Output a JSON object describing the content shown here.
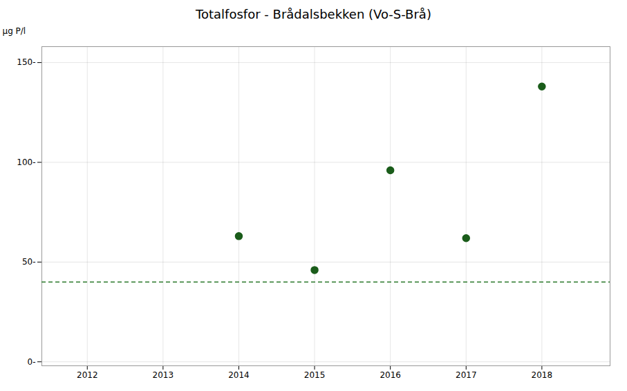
{
  "chart_data": {
    "type": "scatter",
    "title": "Totalfosfor - Brådalsbekken (Vo-S-Brå)",
    "ylabel": "μg P/l",
    "x": [
      2014,
      2015,
      2016,
      2017,
      2018
    ],
    "values": [
      63,
      46,
      96,
      62,
      138
    ],
    "color": "#1a5c1a",
    "marker": "circle",
    "xlim": [
      2011.4,
      2018.9
    ],
    "xticks": [
      2012,
      2013,
      2014,
      2015,
      2016,
      2017,
      2018
    ],
    "ylim": [
      -2,
      158
    ],
    "yticks": [
      {
        "value": 0,
        "label": "0-"
      },
      {
        "value": 50,
        "label": "50-"
      },
      {
        "value": 100,
        "label": "100-"
      },
      {
        "value": 150,
        "label": "150-"
      }
    ],
    "hline": {
      "y": 40,
      "color": "#2d7a2d",
      "line_style": "dashed"
    },
    "grid": true
  }
}
